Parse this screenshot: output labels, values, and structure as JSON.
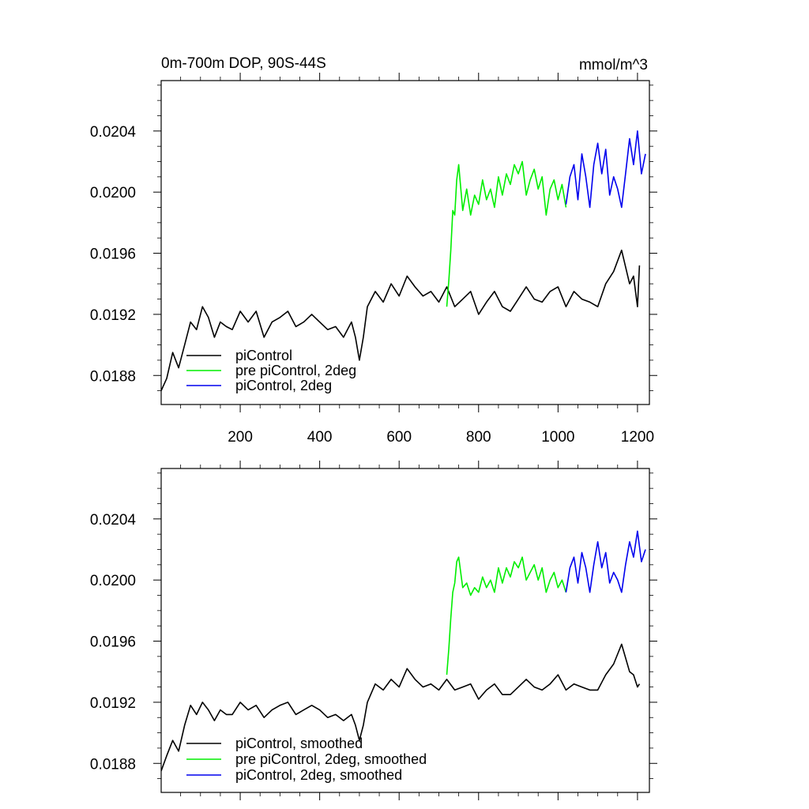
{
  "figure": {
    "title_left": "0m-700m DOP, 90S-44S",
    "title_right": "mmol/m^3"
  },
  "chart_data": [
    {
      "type": "line",
      "title": "0m-700m DOP, 90S-44S",
      "units": "mmol/m^3",
      "xlim": [
        1,
        1230
      ],
      "ylim": [
        0.01861,
        0.02073
      ],
      "x_ticks": [
        200,
        400,
        600,
        800,
        1000,
        1200
      ],
      "x_tick_labels": [
        "200",
        "400",
        "600",
        "800",
        "1000",
        "1200"
      ],
      "y_ticks": [
        0.0188,
        0.0192,
        0.0196,
        0.02,
        0.0204
      ],
      "y_tick_labels": [
        "0.0188",
        "0.0192",
        "0.0196",
        "0.0200",
        "0.0204"
      ],
      "grid": false,
      "legend_position": "bottom-left",
      "series": [
        {
          "name": "piControl",
          "color": "#000000",
          "x": [
            1,
            15,
            30,
            45,
            60,
            75,
            90,
            105,
            120,
            135,
            150,
            165,
            180,
            200,
            220,
            240,
            260,
            280,
            300,
            320,
            340,
            360,
            380,
            400,
            420,
            440,
            460,
            470,
            480,
            490,
            500,
            510,
            520,
            540,
            560,
            580,
            600,
            620,
            640,
            660,
            680,
            700,
            720,
            740,
            760,
            780,
            800,
            820,
            840,
            860,
            880,
            900,
            920,
            940,
            960,
            980,
            1000,
            1020,
            1040,
            1060,
            1080,
            1100,
            1120,
            1140,
            1160,
            1180,
            1190,
            1200,
            1205
          ],
          "y": [
            0.0187,
            0.01878,
            0.01895,
            0.01885,
            0.019,
            0.01915,
            0.0191,
            0.01925,
            0.01918,
            0.01905,
            0.01915,
            0.01912,
            0.0191,
            0.01922,
            0.01915,
            0.01922,
            0.01905,
            0.01915,
            0.01918,
            0.01922,
            0.01912,
            0.01915,
            0.0192,
            0.01915,
            0.0191,
            0.01912,
            0.01905,
            0.0191,
            0.01915,
            0.01905,
            0.0189,
            0.01905,
            0.01925,
            0.01935,
            0.01928,
            0.0194,
            0.01932,
            0.01945,
            0.01938,
            0.01932,
            0.01935,
            0.01928,
            0.01938,
            0.01925,
            0.0193,
            0.01935,
            0.0192,
            0.01928,
            0.01935,
            0.01925,
            0.01922,
            0.0193,
            0.01938,
            0.0193,
            0.01928,
            0.01935,
            0.01938,
            0.01925,
            0.01935,
            0.0193,
            0.01928,
            0.01925,
            0.0194,
            0.01948,
            0.01962,
            0.0194,
            0.01945,
            0.01925,
            0.01952
          ]
        },
        {
          "name": "pre piControl, 2deg",
          "color": "#00ee00",
          "x": [
            720,
            725,
            730,
            735,
            740,
            745,
            750,
            760,
            770,
            780,
            790,
            800,
            810,
            820,
            830,
            840,
            850,
            860,
            870,
            880,
            890,
            900,
            910,
            920,
            930,
            940,
            950,
            960,
            970,
            980,
            990,
            1000,
            1010,
            1020
          ],
          "y": [
            0.01925,
            0.01942,
            0.01962,
            0.01988,
            0.01985,
            0.02008,
            0.02018,
            0.01988,
            0.02002,
            0.01985,
            0.01998,
            0.01992,
            0.02008,
            0.01995,
            0.02002,
            0.0199,
            0.0201,
            0.01998,
            0.02012,
            0.02005,
            0.02018,
            0.02012,
            0.0202,
            0.01998,
            0.02008,
            0.02015,
            0.02002,
            0.0201,
            0.01985,
            0.02002,
            0.02008,
            0.01995,
            0.02005,
            0.0199
          ]
        },
        {
          "name": "piControl, 2deg",
          "color": "#0000ee",
          "x": [
            1020,
            1030,
            1040,
            1050,
            1060,
            1070,
            1080,
            1090,
            1100,
            1110,
            1120,
            1130,
            1140,
            1150,
            1160,
            1170,
            1180,
            1190,
            1200,
            1210,
            1220
          ],
          "y": [
            0.01992,
            0.0201,
            0.02018,
            0.01995,
            0.02025,
            0.0201,
            0.0199,
            0.02018,
            0.02032,
            0.02012,
            0.02028,
            0.01998,
            0.0201,
            0.02002,
            0.0199,
            0.02012,
            0.02035,
            0.02018,
            0.0204,
            0.02012,
            0.02025
          ]
        }
      ]
    },
    {
      "type": "line",
      "xlim": [
        1,
        1230
      ],
      "ylim": [
        0.01861,
        0.02073
      ],
      "x_ticks": [
        200,
        400,
        600,
        800,
        1000,
        1200
      ],
      "y_ticks": [
        0.0188,
        0.0192,
        0.0196,
        0.02,
        0.0204
      ],
      "y_tick_labels": [
        "0.0188",
        "0.0192",
        "0.0196",
        "0.0200",
        "0.0204"
      ],
      "grid": false,
      "legend_position": "bottom-left",
      "series": [
        {
          "name": "piControl, smoothed",
          "color": "#000000",
          "x": [
            1,
            15,
            30,
            45,
            60,
            75,
            90,
            105,
            120,
            135,
            150,
            165,
            180,
            200,
            220,
            240,
            260,
            280,
            300,
            320,
            340,
            360,
            380,
            400,
            420,
            440,
            460,
            470,
            480,
            490,
            500,
            510,
            520,
            540,
            560,
            580,
            600,
            620,
            640,
            660,
            680,
            700,
            720,
            740,
            760,
            780,
            800,
            820,
            840,
            860,
            880,
            900,
            920,
            940,
            960,
            980,
            1000,
            1020,
            1040,
            1060,
            1080,
            1100,
            1120,
            1140,
            1160,
            1180,
            1190,
            1200,
            1205
          ],
          "y": [
            0.01875,
            0.01885,
            0.01895,
            0.01888,
            0.01905,
            0.01918,
            0.01912,
            0.0192,
            0.01915,
            0.01908,
            0.01915,
            0.01912,
            0.01912,
            0.0192,
            0.01915,
            0.01918,
            0.0191,
            0.01915,
            0.01918,
            0.0192,
            0.01912,
            0.01915,
            0.01918,
            0.01915,
            0.0191,
            0.01912,
            0.01908,
            0.0191,
            0.01912,
            0.01905,
            0.01895,
            0.01905,
            0.0192,
            0.01932,
            0.01928,
            0.01935,
            0.0193,
            0.01942,
            0.01935,
            0.0193,
            0.01932,
            0.01928,
            0.01935,
            0.01928,
            0.0193,
            0.01932,
            0.01922,
            0.01928,
            0.01932,
            0.01925,
            0.01925,
            0.0193,
            0.01935,
            0.0193,
            0.01928,
            0.01932,
            0.01938,
            0.01928,
            0.01932,
            0.0193,
            0.01928,
            0.01928,
            0.01938,
            0.01945,
            0.01958,
            0.0194,
            0.01938,
            0.0193,
            0.01932
          ]
        },
        {
          "name": "pre piControl, 2deg, smoothed",
          "color": "#00ee00",
          "x": [
            720,
            725,
            730,
            735,
            740,
            745,
            750,
            760,
            770,
            780,
            790,
            800,
            810,
            820,
            830,
            840,
            850,
            860,
            870,
            880,
            890,
            900,
            910,
            920,
            930,
            940,
            950,
            960,
            970,
            980,
            990,
            1000,
            1010,
            1020
          ],
          "y": [
            0.01938,
            0.01955,
            0.01975,
            0.01992,
            0.01998,
            0.02012,
            0.02015,
            0.01995,
            0.01998,
            0.0199,
            0.01995,
            0.01992,
            0.02002,
            0.01995,
            0.02,
            0.01992,
            0.02008,
            0.01998,
            0.02008,
            0.02002,
            0.02012,
            0.02008,
            0.02015,
            0.02,
            0.02005,
            0.0201,
            0.02,
            0.02008,
            0.01992,
            0.02,
            0.02005,
            0.01995,
            0.02,
            0.01992
          ]
        },
        {
          "name": "piControl, 2deg, smoothed",
          "color": "#0000ee",
          "x": [
            1020,
            1030,
            1040,
            1050,
            1060,
            1070,
            1080,
            1090,
            1100,
            1110,
            1120,
            1130,
            1140,
            1150,
            1160,
            1170,
            1180,
            1190,
            1200,
            1210,
            1220
          ],
          "y": [
            0.01992,
            0.02008,
            0.02015,
            0.01998,
            0.02018,
            0.02008,
            0.01992,
            0.0201,
            0.02025,
            0.02008,
            0.02018,
            0.01998,
            0.02005,
            0.02,
            0.01992,
            0.0201,
            0.02025,
            0.02015,
            0.02032,
            0.02012,
            0.0202
          ]
        }
      ]
    }
  ]
}
